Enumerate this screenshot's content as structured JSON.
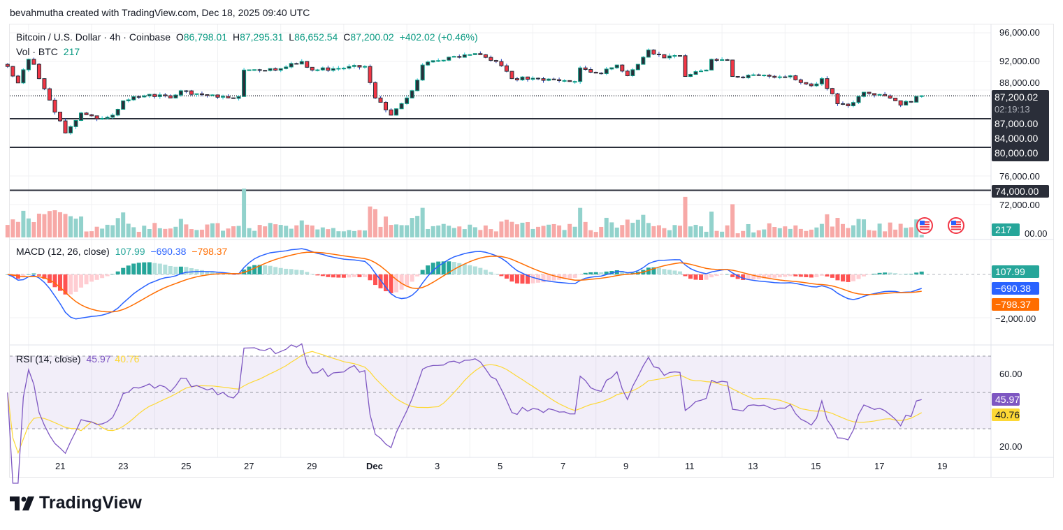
{
  "credit": "bevahmutha created with TradingView.com, Dec 18, 2025 09:40 UTC",
  "legend": {
    "symbol": "Bitcoin / U.S. Dollar · 4h · Coinbase",
    "o_label": "O",
    "o": "86,798.01",
    "h_label": "H",
    "h": "87,295.31",
    "l_label": "L",
    "l": "86,652.54",
    "c_label": "C",
    "c": "87,200.02",
    "change": "+402.02 (+0.46%)",
    "vol_label": "Vol · BTC",
    "vol": "217"
  },
  "macd_legend": {
    "label": "MACD (12, 26, close)",
    "hist": "107.99",
    "macd": "−690.38",
    "signal": "−798.37"
  },
  "rsi_legend": {
    "label": "RSI (14, close)",
    "rsi": "45.97",
    "ma": "40.76"
  },
  "price_axis": {
    "ticks": [
      "96,000.00",
      "92,000.00",
      "88,000.00",
      "76,000.00",
      "72,000.00"
    ],
    "last_price": "87,200.02",
    "countdown": "02:19:13",
    "line_labels": [
      "87,000.00",
      "84,000.00",
      "80,000.00"
    ],
    "line_label_74": "74,000.00",
    "volume_tag": "217",
    "vol_axis_tail": "00.00"
  },
  "macd_axis": {
    "tick": "−2,000.00",
    "hist_tag": "107.99",
    "macd_tag": "−690.38",
    "signal_tag": "−798.37"
  },
  "rsi_axis": {
    "tick_60": "60.00",
    "tick_20": "20.00",
    "rsi_tag": "45.97",
    "ma_tag": "40.76"
  },
  "time_axis": [
    "21",
    "23",
    "25",
    "27",
    "29",
    "Dec",
    "3",
    "5",
    "7",
    "9",
    "11",
    "13",
    "15",
    "17",
    "19"
  ],
  "brand": "TradingView",
  "colors": {
    "up": "#089981",
    "down": "#f23645",
    "macd": "#2962ff",
    "signal": "#ff6d00",
    "rsi": "#7e57c2",
    "rsi_ma": "#fdd835",
    "hline": "#2a2e39"
  },
  "icons": [
    "us-flag-event-icon",
    "us-flag-event-icon",
    "tradingview-logo-icon"
  ],
  "chart_data": {
    "type": "candlestick",
    "symbol": "BTCUSD",
    "interval": "4h",
    "price_range": [
      71000,
      97000
    ],
    "horizontal_lines": [
      84000,
      80000,
      74000
    ],
    "last_price": 87200.02,
    "approx_close_path": [
      [
        "2025-11-19T08:00",
        91300
      ],
      [
        "2025-11-19T16:00",
        89000
      ],
      [
        "2025-11-20T00:00",
        92300
      ],
      [
        "2025-11-20T04:00",
        91600
      ],
      [
        "2025-11-20T08:00",
        89600
      ],
      [
        "2025-11-20T16:00",
        86600
      ],
      [
        "2025-11-21T00:00",
        83700
      ],
      [
        "2025-11-21T04:00",
        82000
      ],
      [
        "2025-11-21T16:00",
        84800
      ],
      [
        "2025-11-22T04:00",
        84000
      ],
      [
        "2025-11-22T16:00",
        84500
      ],
      [
        "2025-11-23T00:00",
        86500
      ],
      [
        "2025-11-23T20:00",
        87400
      ],
      [
        "2025-11-24T12:00",
        86900
      ],
      [
        "2025-11-24T20:00",
        87900
      ],
      [
        "2025-11-26T00:00",
        87000
      ],
      [
        "2025-11-26T16:00",
        87100
      ],
      [
        "2025-11-26T20:00",
        90800
      ],
      [
        "2025-11-28T00:00",
        91000
      ],
      [
        "2025-11-28T16:00",
        92000
      ],
      [
        "2025-11-29T00:00",
        90800
      ],
      [
        "2025-11-30T16:00",
        91300
      ],
      [
        "2025-12-01T00:00",
        86900
      ],
      [
        "2025-12-01T12:00",
        84500
      ],
      [
        "2025-12-02T00:00",
        86900
      ],
      [
        "2025-12-02T08:00",
        89400
      ],
      [
        "2025-12-02T12:00",
        91500
      ],
      [
        "2025-12-03T08:00",
        92600
      ],
      [
        "2025-12-04T04:00",
        93100
      ],
      [
        "2025-12-04T20:00",
        92000
      ],
      [
        "2025-12-05T08:00",
        89600
      ],
      [
        "2025-12-06T04:00",
        89600
      ],
      [
        "2025-12-07T08:00",
        89200
      ],
      [
        "2025-12-07T12:00",
        91100
      ],
      [
        "2025-12-08T04:00",
        90300
      ],
      [
        "2025-12-08T16:00",
        91500
      ],
      [
        "2025-12-09T00:00",
        90000
      ],
      [
        "2025-12-09T08:00",
        91600
      ],
      [
        "2025-12-09T16:00",
        93600
      ],
      [
        "2025-12-10T04:00",
        92500
      ],
      [
        "2025-12-10T16:00",
        92800
      ],
      [
        "2025-12-10T20:00",
        89900
      ],
      [
        "2025-12-11T12:00",
        90800
      ],
      [
        "2025-12-11T16:00",
        92300
      ],
      [
        "2025-12-12T04:00",
        92200
      ],
      [
        "2025-12-12T08:00",
        89900
      ],
      [
        "2025-12-14T04:00",
        90000
      ],
      [
        "2025-12-14T20:00",
        88600
      ],
      [
        "2025-12-15T04:00",
        89600
      ],
      [
        "2025-12-15T16:00",
        86100
      ],
      [
        "2025-12-16T00:00",
        85800
      ],
      [
        "2025-12-16T12:00",
        87700
      ],
      [
        "2025-12-17T04:00",
        87200
      ],
      [
        "2025-12-17T16:00",
        85900
      ],
      [
        "2025-12-18T08:00",
        87200
      ]
    ],
    "indicators": {
      "volume": {
        "last": 217
      },
      "macd": {
        "params": [
          12,
          26
        ],
        "histogram": 107.99,
        "macd": -690.38,
        "signal": -798.37,
        "axis_tick": -2000
      },
      "rsi": {
        "period": 14,
        "value": 45.97,
        "ma": 40.76,
        "bands": [
          30,
          50,
          70
        ],
        "axis_ticks": [
          20,
          60
        ]
      }
    }
  }
}
